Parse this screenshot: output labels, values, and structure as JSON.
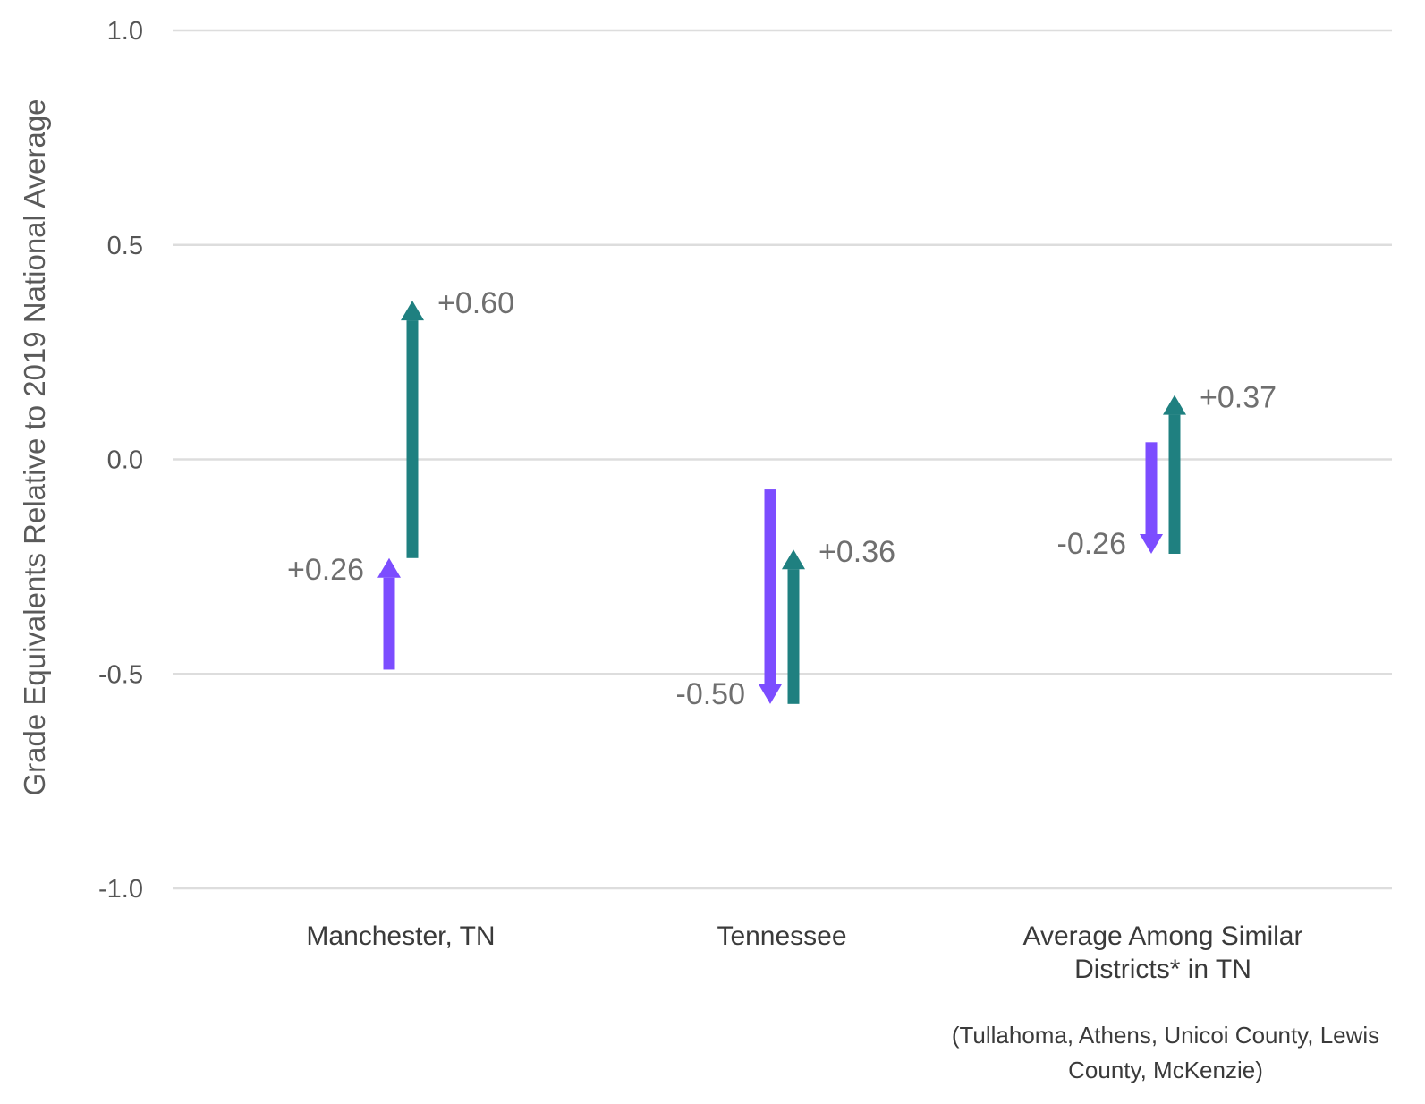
{
  "chart_data": {
    "type": "arrow",
    "ylabel": "Grade Equivalents Relative to 2019 National Average",
    "ylim": [
      -1.0,
      1.0
    ],
    "yticks": [
      "1.0",
      "0.5",
      "0.0",
      "-0.5",
      "-1.0"
    ],
    "grid": true,
    "categories": [
      {
        "name": "Manchester, TN",
        "name_lines": [
          "Manchester, TN"
        ],
        "arrows": [
          {
            "color": "#7c4dff",
            "start": -0.49,
            "end": -0.23,
            "label": "+0.26"
          },
          {
            "color": "#1f8080",
            "start": -0.23,
            "end": 0.37,
            "label": "+0.60"
          }
        ]
      },
      {
        "name": "Tennessee",
        "name_lines": [
          "Tennessee"
        ],
        "arrows": [
          {
            "color": "#7c4dff",
            "start": -0.07,
            "end": -0.57,
            "label": "-0.50"
          },
          {
            "color": "#1f8080",
            "start": -0.57,
            "end": -0.21,
            "label": "+0.36"
          }
        ]
      },
      {
        "name": "Average Among Similar Districts* in TN",
        "name_lines": [
          "Average Among Similar",
          "Districts* in TN"
        ],
        "arrows": [
          {
            "color": "#7c4dff",
            "start": 0.04,
            "end": -0.22,
            "label": "-0.26"
          },
          {
            "color": "#1f8080",
            "start": -0.22,
            "end": 0.15,
            "label": "+0.37"
          }
        ]
      }
    ],
    "footnote_lines": [
      "(Tullahoma, Athens, Unicoi County, Lewis",
      "County, McKenzie)"
    ],
    "colors": {
      "purple": "#7c4dff",
      "teal": "#1f8080",
      "grid": "#dddddd"
    }
  }
}
